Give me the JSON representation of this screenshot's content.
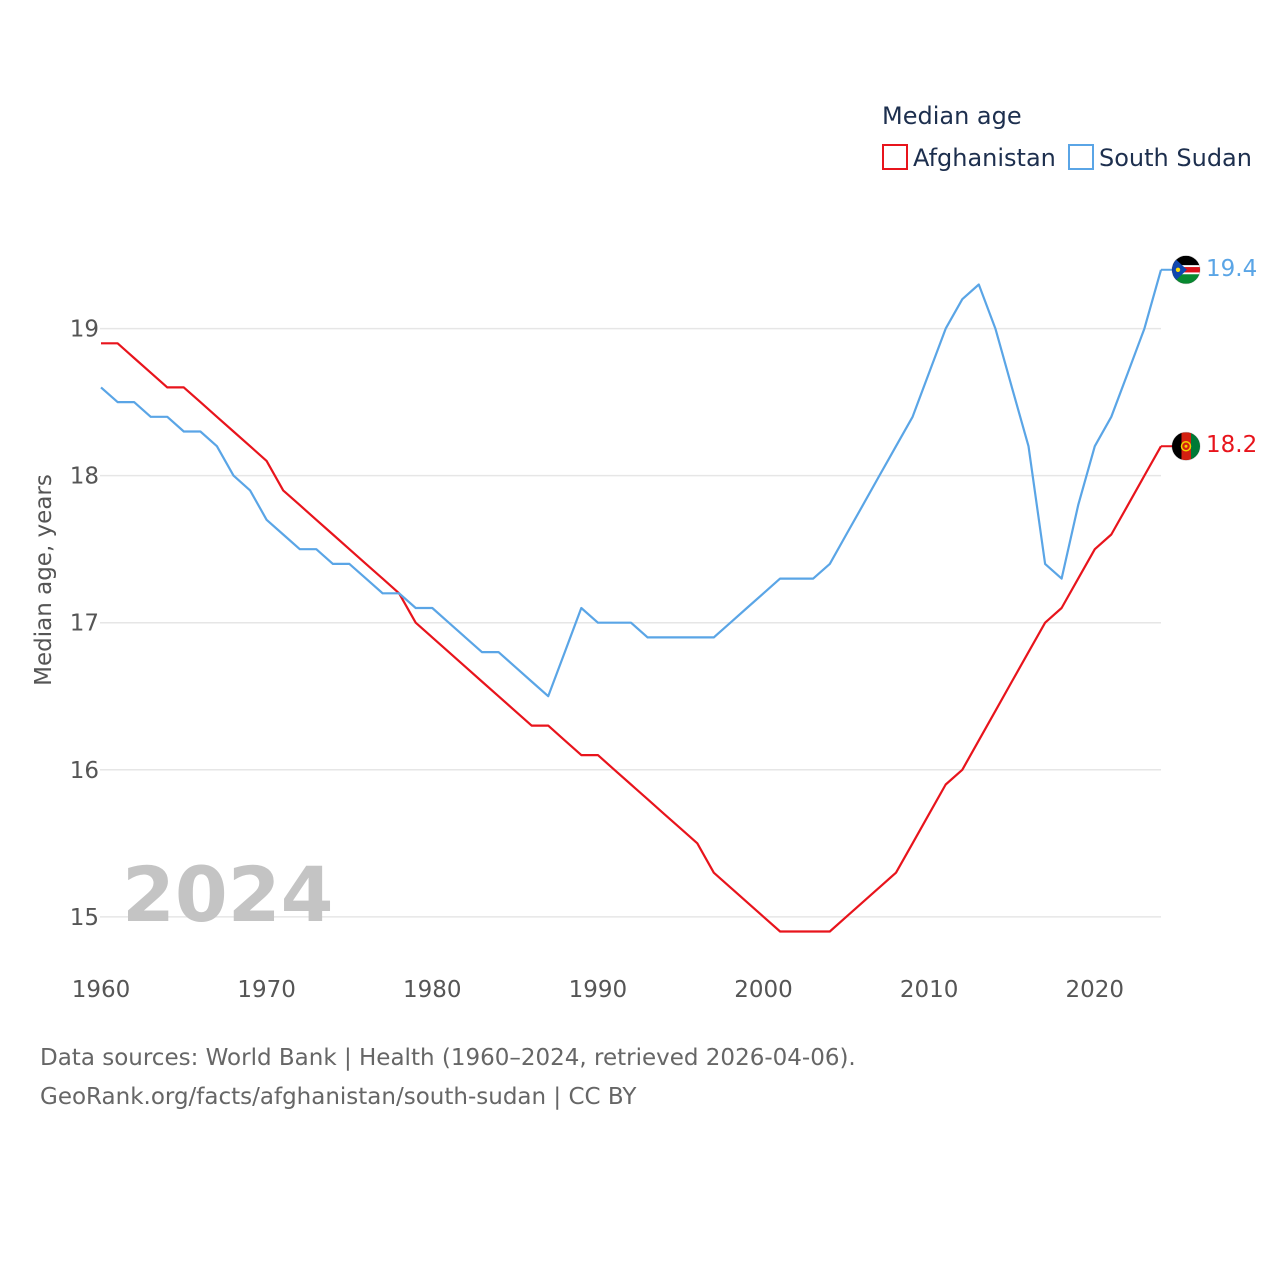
{
  "colors": {
    "afghanistan": "#e8141c",
    "south_sudan": "#5aa5e6",
    "grid": "#e6e6e6"
  },
  "chart_data": {
    "type": "line",
    "title": "",
    "legend_title": "Median age",
    "xlabel": "",
    "ylabel": "Median age, years",
    "xlim": [
      1960,
      2024
    ],
    "ylim": [
      14.55,
      19.65
    ],
    "x_ticks": [
      1960,
      1970,
      1980,
      1990,
      2000,
      2010,
      2020
    ],
    "y_ticks": [
      15,
      16,
      17,
      18,
      19
    ],
    "legend_position": "top-right",
    "current_year_label": "2024",
    "x": [
      1960,
      1961,
      1962,
      1963,
      1964,
      1965,
      1966,
      1967,
      1968,
      1969,
      1970,
      1971,
      1972,
      1973,
      1974,
      1975,
      1976,
      1977,
      1978,
      1979,
      1980,
      1981,
      1982,
      1983,
      1984,
      1985,
      1986,
      1987,
      1988,
      1989,
      1990,
      1991,
      1992,
      1993,
      1994,
      1995,
      1996,
      1997,
      1998,
      1999,
      2000,
      2001,
      2002,
      2003,
      2004,
      2005,
      2006,
      2007,
      2008,
      2009,
      2010,
      2011,
      2012,
      2013,
      2014,
      2015,
      2016,
      2017,
      2018,
      2019,
      2020,
      2021,
      2022,
      2023,
      2024
    ],
    "series": [
      {
        "name": "Afghanistan",
        "color_key": "afghanistan",
        "end_label": "18.2",
        "flag": "afghanistan-flag",
        "values": [
          18.9,
          18.9,
          18.8,
          18.7,
          18.6,
          18.6,
          18.5,
          18.4,
          18.3,
          18.2,
          18.1,
          17.9,
          17.8,
          17.7,
          17.6,
          17.5,
          17.4,
          17.3,
          17.2,
          17.0,
          16.9,
          16.8,
          16.7,
          16.6,
          16.5,
          16.4,
          16.3,
          16.3,
          16.2,
          16.1,
          16.1,
          16.0,
          15.9,
          15.8,
          15.7,
          15.6,
          15.5,
          15.3,
          15.2,
          15.1,
          15.0,
          14.9,
          14.9,
          14.9,
          14.9,
          15.0,
          15.1,
          15.2,
          15.3,
          15.5,
          15.7,
          15.9,
          16.0,
          16.2,
          16.4,
          16.6,
          16.8,
          17.0,
          17.1,
          17.3,
          17.5,
          17.6,
          17.8,
          18.0,
          18.2
        ]
      },
      {
        "name": "South Sudan",
        "color_key": "south_sudan",
        "end_label": "19.4",
        "flag": "south-sudan-flag",
        "values": [
          18.6,
          18.5,
          18.5,
          18.4,
          18.4,
          18.3,
          18.3,
          18.2,
          18.0,
          17.9,
          17.7,
          17.6,
          17.5,
          17.5,
          17.4,
          17.4,
          17.3,
          17.2,
          17.2,
          17.1,
          17.1,
          17.0,
          16.9,
          16.8,
          16.8,
          16.7,
          16.6,
          16.5,
          16.8,
          17.1,
          17.0,
          17.0,
          17.0,
          16.9,
          16.9,
          16.9,
          16.9,
          16.9,
          17.0,
          17.1,
          17.2,
          17.3,
          17.3,
          17.3,
          17.4,
          17.6,
          17.8,
          18.0,
          18.2,
          18.4,
          18.7,
          19.0,
          19.2,
          19.3,
          19.0,
          18.6,
          18.2,
          17.4,
          17.3,
          17.8,
          18.2,
          18.4,
          18.7,
          19.0,
          19.4
        ]
      }
    ]
  },
  "footer": {
    "line1": "Data sources: World Bank | Health (1960–2024, retrieved 2026-04-06).",
    "line2": "GeoRank.org/facts/afghanistan/south-sudan | CC BY"
  }
}
